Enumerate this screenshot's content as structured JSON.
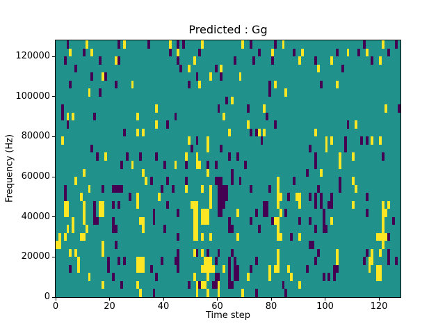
{
  "chart_data": {
    "type": "heatmap",
    "title": "Predicted : Gg",
    "xlabel": "Time step",
    "ylabel": "Frequency (Hz)",
    "x_ticks": [
      0,
      20,
      40,
      60,
      80,
      100,
      120
    ],
    "y_ticks": [
      0,
      20000,
      40000,
      60000,
      80000,
      100000,
      120000
    ],
    "x_range": [
      0,
      128
    ],
    "y_range": [
      0,
      128000
    ],
    "grid_cols": 128,
    "grid_rows": 32,
    "legend": "none",
    "colors": {
      "bg": "#21918c",
      "p": "#440154",
      "y": "#fde725"
    },
    "color_meaning": {
      "bg": "mid value",
      "p": "low value",
      "y": "high value"
    },
    "rows": [
      {
        "r": 0,
        "p": [
          4,
          23,
          34,
          45,
          47,
          72,
          81,
          114,
          126
        ],
        "y": [
          11,
          25,
          42,
          54,
          69,
          84,
          121
        ]
      },
      {
        "r": 1,
        "p": [
          10,
          42,
          53,
          75,
          88,
          104,
          112,
          123
        ],
        "y": [
          5,
          13,
          45,
          80,
          91,
          108,
          115
        ]
      },
      {
        "r": 2,
        "p": [
          3,
          16,
          23,
          45,
          66,
          73,
          80,
          96,
          117
        ],
        "y": [
          22,
          51,
          90,
          102,
          120
        ]
      },
      {
        "r": 3,
        "p": [
          7,
          46,
          59,
          106
        ],
        "y": [
          49,
          61,
          97
        ]
      },
      {
        "r": 4,
        "p": [
          13,
          18,
          52,
          61
        ],
        "y": [
          17,
          57,
          68
        ]
      },
      {
        "r": 5,
        "p": [
          5,
          22,
          49,
          79,
          98
        ],
        "y": [
          28,
          53,
          81,
          104
        ]
      },
      {
        "r": 6,
        "p": [
          16,
          79
        ],
        "y": [
          12,
          85
        ]
      },
      {
        "r": 7,
        "p": [
          63
        ],
        "y": [
          65
        ]
      },
      {
        "r": 8,
        "p": [
          2,
          60,
          71,
          127
        ],
        "y": [
          37,
          77,
          122
        ]
      },
      {
        "r": 9,
        "p": [
          2,
          14,
          44,
          78
        ],
        "y": [
          4,
          6,
          30,
          62
        ]
      },
      {
        "r": 10,
        "p": [
          4,
          41,
          81,
          108
        ],
        "y": [
          37,
          71,
          111
        ]
      },
      {
        "r": 11,
        "p": [
          25,
          72,
          74
        ],
        "y": [
          30,
          32,
          64,
          75,
          77,
          96
        ]
      },
      {
        "r": 12,
        "p": [
          52,
          76,
          107,
          113,
          115
        ],
        "y": [
          2,
          49,
          56,
          100,
          102,
          117,
          120
        ]
      },
      {
        "r": 13,
        "p": [
          13,
          50,
          61,
          94,
          107
        ],
        "y": [
          56,
          100
        ]
      },
      {
        "r": 14,
        "p": [
          15,
          26,
          31,
          37,
          64,
          67,
          96,
          121
        ],
        "y": [
          18,
          48,
          52,
          105,
          110
        ]
      },
      {
        "r": 15,
        "p": [
          24,
          40,
          48,
          56,
          59,
          70,
          96
        ],
        "y": [
          28,
          44,
          52,
          53,
          105
        ]
      },
      {
        "r": 16,
        "p": [
          65,
          93
        ],
        "y": [
          10,
          32,
          56,
          98
        ]
      },
      {
        "r": 17,
        "p": [
          35,
          41,
          48,
          59,
          60,
          61,
          65,
          68,
          88,
          105
        ],
        "y": [
          7,
          33,
          82,
          110
        ]
      },
      {
        "r": 18,
        "p": [
          3,
          17,
          21,
          22,
          23,
          24,
          39,
          43,
          60,
          61,
          62,
          63,
          72,
          79,
          97,
          105
        ],
        "y": [
          12,
          48,
          54,
          57,
          82,
          111
        ]
      },
      {
        "r": 19,
        "p": [
          3,
          27,
          60,
          61,
          62,
          63,
          86,
          94,
          96,
          98,
          102,
          115
        ],
        "y": [
          9,
          30,
          38,
          57,
          82,
          83,
          89,
          90
        ]
      },
      {
        "r": 20,
        "p": [
          14,
          21,
          23,
          41,
          60,
          61,
          62,
          77,
          78,
          96,
          98,
          101,
          102
        ],
        "y": [
          3,
          4,
          10,
          16,
          17,
          30,
          50,
          51,
          52,
          57,
          82,
          90,
          110,
          121,
          123
        ]
      },
      {
        "r": 21,
        "p": [
          14,
          36,
          45,
          60,
          61,
          74,
          77,
          78,
          85,
          99,
          115
        ],
        "y": [
          3,
          4,
          10,
          16,
          17,
          51,
          52,
          54,
          55,
          56,
          67,
          83,
          121,
          122
        ]
      },
      {
        "r": 22,
        "p": [
          14,
          15,
          21,
          36,
          64,
          72,
          80,
          90,
          94,
          99,
          125
        ],
        "y": [
          6,
          10,
          31,
          32,
          51,
          52,
          54,
          55,
          56,
          81,
          82,
          102,
          121
        ]
      },
      {
        "r": 23,
        "p": [
          21,
          22,
          40,
          64,
          65,
          75,
          96,
          99,
          100
        ],
        "y": [
          4,
          6,
          11,
          32,
          51,
          52,
          82,
          121
        ]
      },
      {
        "r": 24,
        "p": [
          45,
          87,
          123
        ],
        "y": [
          1,
          3,
          9,
          10,
          51,
          52,
          54,
          57,
          67,
          82,
          83,
          90,
          119,
          120,
          121,
          122
        ]
      },
      {
        "r": 25,
        "p": [
          22,
          94,
          95
        ],
        "y": [
          0,
          1,
          17,
          121
        ]
      },
      {
        "r": 26,
        "p": [
          45,
          52,
          56,
          60,
          65,
          97,
          115,
          123
        ],
        "y": [
          5,
          7,
          17,
          51,
          54,
          82,
          104,
          117,
          120
        ]
      },
      {
        "r": 27,
        "p": [
          19,
          23,
          25,
          39,
          44,
          45,
          59,
          64,
          66,
          74,
          96,
          114,
          123,
          126
        ],
        "y": [
          8,
          30,
          31,
          32,
          55,
          56,
          57,
          82,
          104,
          116,
          117
        ]
      },
      {
        "r": 28,
        "p": [
          5,
          19,
          35,
          45,
          64,
          66,
          67,
          72,
          93,
          103,
          104
        ],
        "y": [
          8,
          30,
          31,
          32,
          54,
          55,
          56,
          57,
          58,
          62,
          79,
          81,
          82,
          86,
          116,
          119,
          120
        ]
      },
      {
        "r": 29,
        "p": [
          21,
          37,
          59,
          60,
          64,
          66,
          67,
          99,
          101,
          103
        ],
        "y": [
          12,
          51,
          56,
          71,
          79,
          87,
          119,
          120
        ]
      },
      {
        "r": 30,
        "p": [
          24,
          49,
          53,
          58,
          59,
          64,
          65,
          84
        ],
        "y": [
          17,
          30,
          52,
          54,
          55,
          60,
          90
        ]
      },
      {
        "r": 31,
        "p": [
          36,
          74,
          85
        ],
        "y": [
          31,
          52,
          56,
          60,
          69
        ]
      }
    ]
  }
}
